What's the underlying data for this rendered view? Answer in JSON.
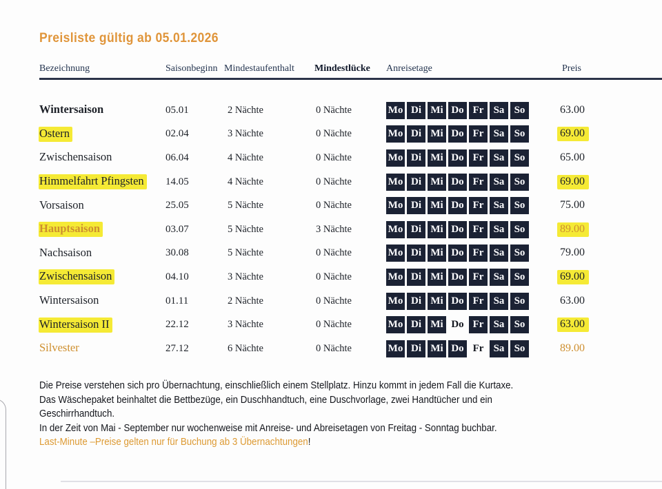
{
  "title": "Preisliste gültig ab 05.01.2026",
  "colors": {
    "accent_orange": "#E0953A",
    "highlight_yellow": "#F5EA35",
    "day_box_navy": "#1B2234",
    "header_navy": "#24344F"
  },
  "table": {
    "columns": [
      "Bezeichnung",
      "Saisonbeginn",
      "Mindestaufenthalt",
      "Mindestlücke",
      "Anreisetage",
      "Preis"
    ],
    "day_labels": [
      "Mo",
      "Di",
      "Mi",
      "Do",
      "Fr",
      "Sa",
      "So"
    ],
    "rows": [
      {
        "name": "Wintersaison",
        "bold": true,
        "highlight": false,
        "orange": false,
        "season_start": "05.01",
        "min_stay": "2 Nächte",
        "min_gap": "0 Nächte",
        "days_boxed": [
          true,
          true,
          true,
          true,
          true,
          true,
          true
        ],
        "price": "63.00",
        "price_highlight": false,
        "price_orange": false
      },
      {
        "name": "Ostern",
        "bold": false,
        "highlight": true,
        "orange": false,
        "season_start": "02.04",
        "min_stay": "3 Nächte",
        "min_gap": "0 Nächte",
        "days_boxed": [
          true,
          true,
          true,
          true,
          true,
          true,
          true
        ],
        "price": "69.00",
        "price_highlight": true,
        "price_orange": false
      },
      {
        "name": "Zwischensaison",
        "bold": false,
        "highlight": false,
        "orange": false,
        "season_start": "06.04",
        "min_stay": "4 Nächte",
        "min_gap": "0 Nächte",
        "days_boxed": [
          true,
          true,
          true,
          true,
          true,
          true,
          true
        ],
        "price": "65.00",
        "price_highlight": false,
        "price_orange": false
      },
      {
        "name": "Himmelfahrt Pfingsten",
        "bold": false,
        "highlight": true,
        "orange": false,
        "season_start": "14.05",
        "min_stay": "4 Nächte",
        "min_gap": "0 Nächte",
        "days_boxed": [
          true,
          true,
          true,
          true,
          true,
          true,
          true
        ],
        "price": "69.00",
        "price_highlight": true,
        "price_orange": false
      },
      {
        "name": "Vorsaison",
        "bold": false,
        "highlight": false,
        "orange": false,
        "season_start": "25.05",
        "min_stay": "5 Nächte",
        "min_gap": "0 Nächte",
        "days_boxed": [
          true,
          true,
          true,
          true,
          true,
          true,
          true
        ],
        "price": "75.00",
        "price_highlight": false,
        "price_orange": false
      },
      {
        "name": "Hauptsaison",
        "bold": true,
        "highlight": true,
        "orange": true,
        "season_start": "03.07",
        "min_stay": "5 Nächte",
        "min_gap": "3 Nächte",
        "days_boxed": [
          true,
          true,
          true,
          true,
          true,
          true,
          true
        ],
        "price": "89.00",
        "price_highlight": true,
        "price_orange": true
      },
      {
        "name": "Nachsaison",
        "bold": false,
        "highlight": false,
        "orange": false,
        "season_start": "30.08",
        "min_stay": "5 Nächte",
        "min_gap": "0 Nächte",
        "days_boxed": [
          true,
          true,
          true,
          true,
          true,
          true,
          true
        ],
        "price": "79.00",
        "price_highlight": false,
        "price_orange": false
      },
      {
        "name": "Zwischensaison",
        "bold": false,
        "highlight": true,
        "orange": false,
        "season_start": "04.10",
        "min_stay": "3 Nächte",
        "min_gap": "0 Nächte",
        "days_boxed": [
          true,
          true,
          true,
          true,
          true,
          true,
          true
        ],
        "price": "69.00",
        "price_highlight": true,
        "price_orange": false
      },
      {
        "name": "Wintersaison",
        "bold": false,
        "highlight": false,
        "orange": false,
        "season_start": "01.11",
        "min_stay": "2 Nächte",
        "min_gap": "0 Nächte",
        "days_boxed": [
          true,
          true,
          true,
          true,
          true,
          true,
          true
        ],
        "price": "63.00",
        "price_highlight": false,
        "price_orange": false
      },
      {
        "name": "Wintersaison II",
        "bold": false,
        "highlight": true,
        "orange": false,
        "season_start": "22.12",
        "min_stay": "3 Nächte",
        "min_gap": "0 Nächte",
        "days_boxed": [
          true,
          true,
          true,
          false,
          true,
          true,
          true
        ],
        "price": "63.00",
        "price_highlight": true,
        "price_orange": false
      },
      {
        "name": "Silvester",
        "bold": false,
        "highlight": false,
        "orange": true,
        "season_start": "27.12",
        "min_stay": "6 Nächte",
        "min_gap": "0 Nächte",
        "days_boxed": [
          true,
          true,
          true,
          true,
          false,
          true,
          true
        ],
        "price": "89.00",
        "price_highlight": false,
        "price_orange": true
      }
    ]
  },
  "footer": {
    "lines": [
      "Die Preise verstehen sich pro Übernachtung, einschließlich einem Stellplatz. Hinzu kommt in jedem Fall die Kurtaxe.",
      "Das Wäschepaket beinhaltet die Bettbezüge, ein Duschhandtuch, eine Duschvorlage, zwei Handtücher und ein",
      "Geschirrhandtuch.",
      "In der Zeit von Mai - September nur wochenweise mit Anreise- und Abreisetagen von Freitag - Sonntag buchbar."
    ],
    "last_minute": "Last-Minute –Preise gelten nur für Buchung ab 3 Übernachtungen",
    "last_minute_bang": "!"
  }
}
